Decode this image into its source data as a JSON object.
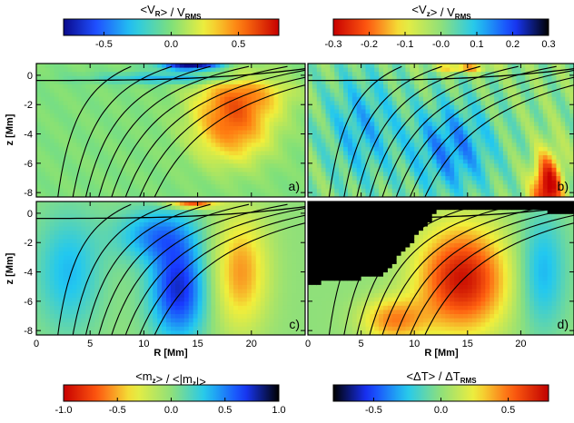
{
  "chart_data": [
    {
      "type": "heatmap",
      "panel_label": "a)",
      "xlabel": "",
      "ylabel": "z [Mm]",
      "xlim": [
        0,
        25
      ],
      "ylim": [
        -8.3,
        0.8
      ],
      "colorbar": {
        "title": "<V_R> / V_RMS",
        "title_parts": {
          "pre": "<V",
          "sub1": "R",
          "mid": "> / V",
          "sub2": "RMS"
        },
        "range": [
          -0.8,
          0.8
        ],
        "colormap": "blue-cyan-green-yellow-red",
        "ticks": [
          "-0.5",
          "0.0",
          "0.5"
        ],
        "tick_values": [
          -0.5,
          0.0,
          0.5
        ]
      }
    },
    {
      "type": "heatmap",
      "panel_label": "b)",
      "xlabel": "",
      "ylabel": "",
      "xlim": [
        0,
        25
      ],
      "ylim": [
        -8.3,
        0.8
      ],
      "colorbar": {
        "title": "<V_z> / V_RMS",
        "title_parts": {
          "pre": "<V",
          "sub1": "z",
          "mid": "> / V",
          "sub2": "RMS"
        },
        "range": [
          -0.3,
          0.3
        ],
        "colormap": "red-yellow-green-cyan-blue-black",
        "ticks": [
          "-0.3",
          "-0.2",
          "-0.1",
          "-0.0",
          "0.1",
          "0.2",
          "0.3"
        ],
        "tick_values": [
          -0.3,
          -0.2,
          -0.1,
          0.0,
          0.1,
          0.2,
          0.3
        ]
      }
    },
    {
      "type": "heatmap",
      "panel_label": "c)",
      "xlabel": "R [Mm]",
      "ylabel": "z [Mm]",
      "xlim": [
        0,
        25
      ],
      "ylim": [
        -8.3,
        0.8
      ],
      "colorbar": {
        "title": "<m_z> / <|m_z|>",
        "title_parts": {
          "pre": "<m",
          "sub1": "z",
          "mid": "> / <|m",
          "sub2": "z",
          "post": "|>"
        },
        "range": [
          -1.0,
          1.0
        ],
        "colormap": "red-yellow-green-cyan-blue-black",
        "ticks": [
          "-1.0",
          "-0.5",
          "0.0",
          "0.5",
          "1.0"
        ],
        "tick_values": [
          -1.0,
          -0.5,
          0.0,
          0.5,
          1.0
        ]
      }
    },
    {
      "type": "heatmap",
      "panel_label": "d)",
      "xlabel": "R [Mm]",
      "ylabel": "",
      "xlim": [
        0,
        25
      ],
      "ylim": [
        -8.3,
        0.8
      ],
      "colorbar": {
        "title": "<ΔT> / ΔT_RMS",
        "title_parts": {
          "pre": "<ΔT> / ΔT",
          "sub2": "RMS"
        },
        "range": [
          -0.8,
          0.8
        ],
        "colormap": "black-blue-cyan-green-yellow-red",
        "ticks": [
          "-0.5",
          "0.0",
          "0.5"
        ],
        "tick_values": [
          -0.5,
          0.0,
          0.5
        ]
      }
    }
  ],
  "axes": {
    "x_ticks": [
      0,
      5,
      10,
      15,
      20
    ],
    "x_tick_labels": [
      "0",
      "5",
      "10",
      "15",
      "20"
    ],
    "y_ticks": [
      0,
      -2,
      -4,
      -6,
      -8
    ],
    "y_tick_labels": [
      "0",
      "-2",
      "-4",
      "-6",
      "-8"
    ]
  },
  "field_lines_footpoints_R": [
    2.0,
    3.4,
    4.6,
    5.8,
    7.0,
    8.3,
    9.6,
    11.0
  ],
  "colors": {
    "background": "#ffffff",
    "axis": "#000000",
    "field_line": "#000000"
  }
}
